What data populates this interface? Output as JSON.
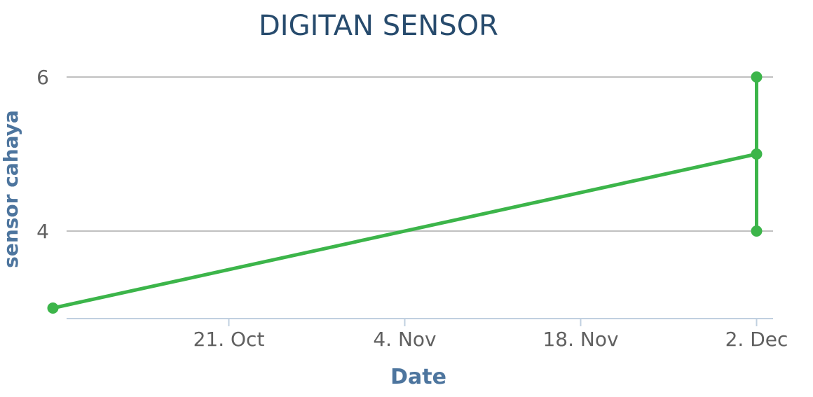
{
  "chart_data": {
    "type": "line",
    "title": "DIGITAN SENSOR",
    "xlabel": "Date",
    "ylabel": "sensor cahaya",
    "x_axis_type": "datetime",
    "x_ticks": [
      "21. Oct",
      "4. Nov",
      "18. Nov",
      "2. Dec"
    ],
    "y_ticks": [
      4,
      6
    ],
    "ylim": [
      2.75,
      6
    ],
    "grid": true,
    "legend": "none",
    "series": [
      {
        "color": "#3cb54a",
        "points": [
          {
            "x": "2019-10-07",
            "y": 3
          },
          {
            "x": "2019-12-02",
            "y": 5
          },
          {
            "x": "2019-12-02",
            "y": 6
          },
          {
            "x": "2019-12-02",
            "y": 4
          }
        ]
      }
    ]
  }
}
